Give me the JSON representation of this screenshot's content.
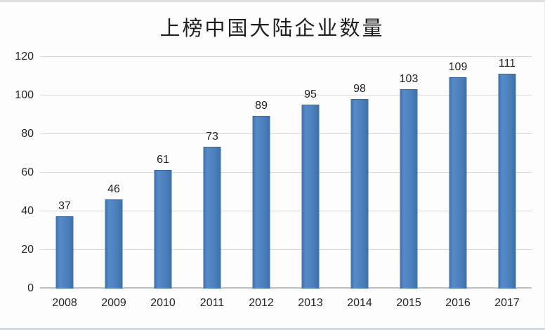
{
  "chart_data": {
    "type": "bar",
    "title": "上榜中国大陆企业数量",
    "categories": [
      "2008",
      "2009",
      "2010",
      "2011",
      "2012",
      "2013",
      "2014",
      "2015",
      "2016",
      "2017"
    ],
    "values": [
      37,
      46,
      61,
      73,
      89,
      95,
      98,
      103,
      109,
      111
    ],
    "xlabel": "",
    "ylabel": "",
    "ylim": [
      0,
      120
    ],
    "yticks": [
      0,
      20,
      40,
      60,
      80,
      100,
      120
    ],
    "grid": true,
    "legend": false,
    "bar_color": "#4a7eb9",
    "bar_edge_color": "#3a6aa3",
    "gridline_color": "#d9d9d9",
    "axis_line_color": "#bdbfc1",
    "text_color": "#262626",
    "background_color": "#fdfdfd"
  }
}
